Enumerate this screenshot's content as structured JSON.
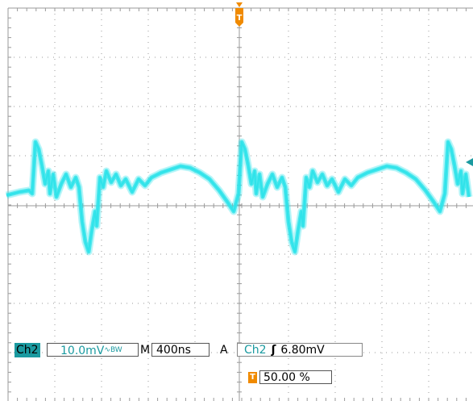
{
  "colors": {
    "trace": "#2fe3ea",
    "channel": "#1a9aa0",
    "trigger_marker": "#f08a00",
    "grid": "#9a9a9a"
  },
  "trigger_marker_top": {
    "glyph": "T",
    "icon": "trigger-position-marker"
  },
  "ground_marker": {
    "icon": "ground-level-arrow"
  },
  "channel": {
    "label": "Ch2",
    "scale": "10.0mV",
    "bandwidth_symbol": "∿",
    "bandwidth_suffix": "B",
    "bandwidth_suffix2": "W"
  },
  "timebase": {
    "prefix": "M",
    "value": "400ns"
  },
  "trigger": {
    "mode": "A",
    "source": "Ch2",
    "slope_glyph": "ʃ",
    "level": "6.80mV"
  },
  "horizontal_position": {
    "icon_glyph": "T",
    "value": "50.00 %"
  }
}
